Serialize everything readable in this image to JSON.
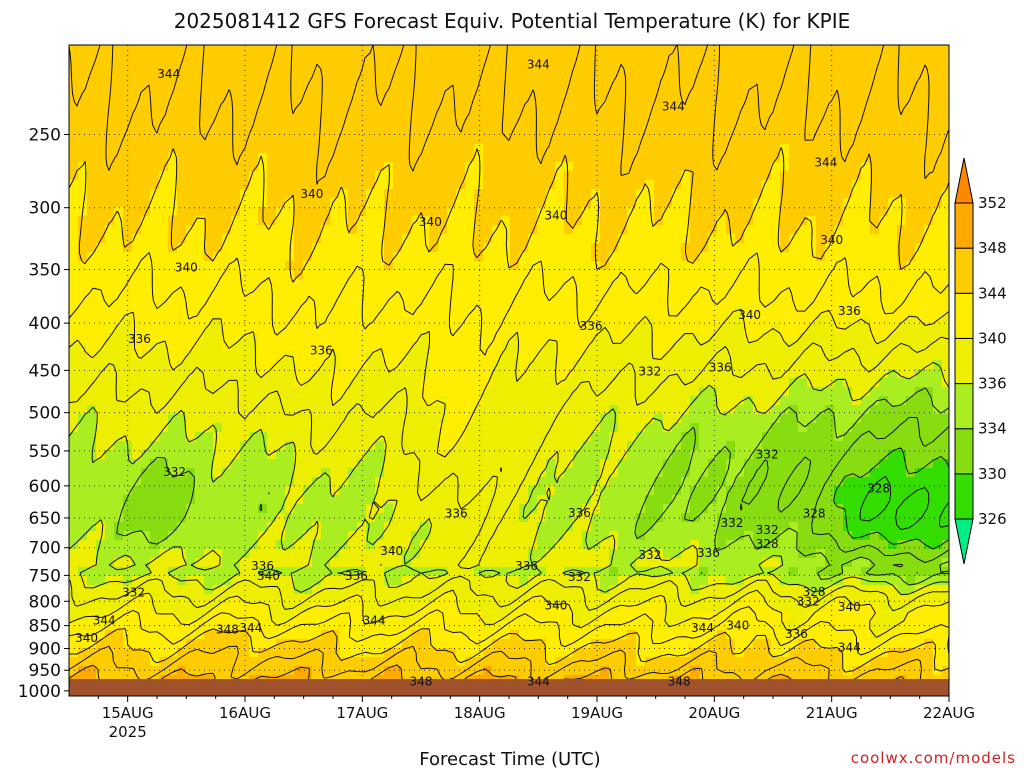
{
  "chart_data": {
    "type": "heatmap",
    "title": "2025081412 GFS Forecast Equiv. Potential Temperature (K) for KPIE",
    "xlabel": "Forecast Time (UTC)",
    "ylabel": "",
    "credit": "coolwx.com/models",
    "y_axis": {
      "scale": "log-pressure",
      "reversed": true,
      "ylim": [
        1013,
        200
      ],
      "ticks": [
        250,
        300,
        350,
        400,
        450,
        500,
        550,
        600,
        650,
        700,
        750,
        800,
        850,
        900,
        950,
        1000
      ]
    },
    "x_axis": {
      "range": [
        "2025-08-14T12Z",
        "2025-08-22T00Z"
      ],
      "ticks": [
        {
          "label": "15AUG",
          "sublabel": "2025",
          "day": 15
        },
        {
          "label": "16AUG",
          "sublabel": "",
          "day": 16
        },
        {
          "label": "17AUG",
          "sublabel": "",
          "day": 17
        },
        {
          "label": "18AUG",
          "sublabel": "",
          "day": 18
        },
        {
          "label": "19AUG",
          "sublabel": "",
          "day": 19
        },
        {
          "label": "20AUG",
          "sublabel": "",
          "day": 20
        },
        {
          "label": "21AUG",
          "sublabel": "",
          "day": 21
        },
        {
          "label": "22AUG",
          "sublabel": "",
          "day": 22
        }
      ]
    },
    "grid": true,
    "colorbar": {
      "placement": "right",
      "levels": [
        326,
        330,
        334,
        336,
        340,
        344,
        348,
        352
      ],
      "colors": [
        "#00ee88",
        "#33dd00",
        "#88dd11",
        "#aaee22",
        "#eeee00",
        "#ffee00",
        "#ffcc00",
        "#ffaa00",
        "#ff8800"
      ]
    },
    "contour_labels": [
      {
        "t": 15.35,
        "p": 215,
        "v": "344"
      },
      {
        "t": 18.5,
        "p": 210,
        "v": "344"
      },
      {
        "t": 19.65,
        "p": 233,
        "v": "344"
      },
      {
        "t": 20.95,
        "p": 268,
        "v": "344"
      },
      {
        "t": 16.57,
        "p": 290,
        "v": "340"
      },
      {
        "t": 17.58,
        "p": 311,
        "v": "340"
      },
      {
        "t": 18.65,
        "p": 306,
        "v": "340"
      },
      {
        "t": 21.0,
        "p": 325,
        "v": "340"
      },
      {
        "t": 15.5,
        "p": 348,
        "v": "340"
      },
      {
        "t": 20.3,
        "p": 392,
        "v": "340"
      },
      {
        "t": 15.1,
        "p": 416,
        "v": "336"
      },
      {
        "t": 16.65,
        "p": 428,
        "v": "336"
      },
      {
        "t": 18.95,
        "p": 403,
        "v": "336"
      },
      {
        "t": 20.05,
        "p": 447,
        "v": "336"
      },
      {
        "t": 21.15,
        "p": 388,
        "v": "336"
      },
      {
        "t": 19.45,
        "p": 451,
        "v": "332"
      },
      {
        "t": 15.4,
        "p": 580,
        "v": "332"
      },
      {
        "t": 20.45,
        "p": 555,
        "v": "332"
      },
      {
        "t": 17.8,
        "p": 643,
        "v": "336"
      },
      {
        "t": 18.85,
        "p": 642,
        "v": "336"
      },
      {
        "t": 20.15,
        "p": 658,
        "v": "332"
      },
      {
        "t": 20.45,
        "p": 670,
        "v": "332"
      },
      {
        "t": 21.4,
        "p": 604,
        "v": "328"
      },
      {
        "t": 20.85,
        "p": 643,
        "v": "328"
      },
      {
        "t": 20.45,
        "p": 694,
        "v": "328"
      },
      {
        "t": 17.25,
        "p": 706,
        "v": "340"
      },
      {
        "t": 19.95,
        "p": 709,
        "v": "336"
      },
      {
        "t": 19.45,
        "p": 713,
        "v": "332"
      },
      {
        "t": 18.4,
        "p": 733,
        "v": "336"
      },
      {
        "t": 16.15,
        "p": 733,
        "v": "336"
      },
      {
        "t": 16.2,
        "p": 751,
        "v": "340"
      },
      {
        "t": 16.95,
        "p": 751,
        "v": "336"
      },
      {
        "t": 18.85,
        "p": 753,
        "v": "332"
      },
      {
        "t": 15.05,
        "p": 783,
        "v": "332"
      },
      {
        "t": 20.85,
        "p": 782,
        "v": "328"
      },
      {
        "t": 20.8,
        "p": 800,
        "v": "332"
      },
      {
        "t": 18.65,
        "p": 808,
        "v": "340"
      },
      {
        "t": 21.15,
        "p": 811,
        "v": "340"
      },
      {
        "t": 14.8,
        "p": 839,
        "v": "344"
      },
      {
        "t": 17.1,
        "p": 839,
        "v": "344"
      },
      {
        "t": 20.2,
        "p": 850,
        "v": "340"
      },
      {
        "t": 19.9,
        "p": 855,
        "v": "344"
      },
      {
        "t": 20.7,
        "p": 868,
        "v": "336"
      },
      {
        "t": 15.85,
        "p": 858,
        "v": "348"
      },
      {
        "t": 16.05,
        "p": 855,
        "v": "344"
      },
      {
        "t": 14.65,
        "p": 877,
        "v": "340"
      },
      {
        "t": 21.15,
        "p": 898,
        "v": "344"
      },
      {
        "t": 17.5,
        "p": 977,
        "v": "348"
      },
      {
        "t": 18.5,
        "p": 977,
        "v": "344"
      },
      {
        "t": 19.7,
        "p": 977,
        "v": "348"
      }
    ]
  }
}
